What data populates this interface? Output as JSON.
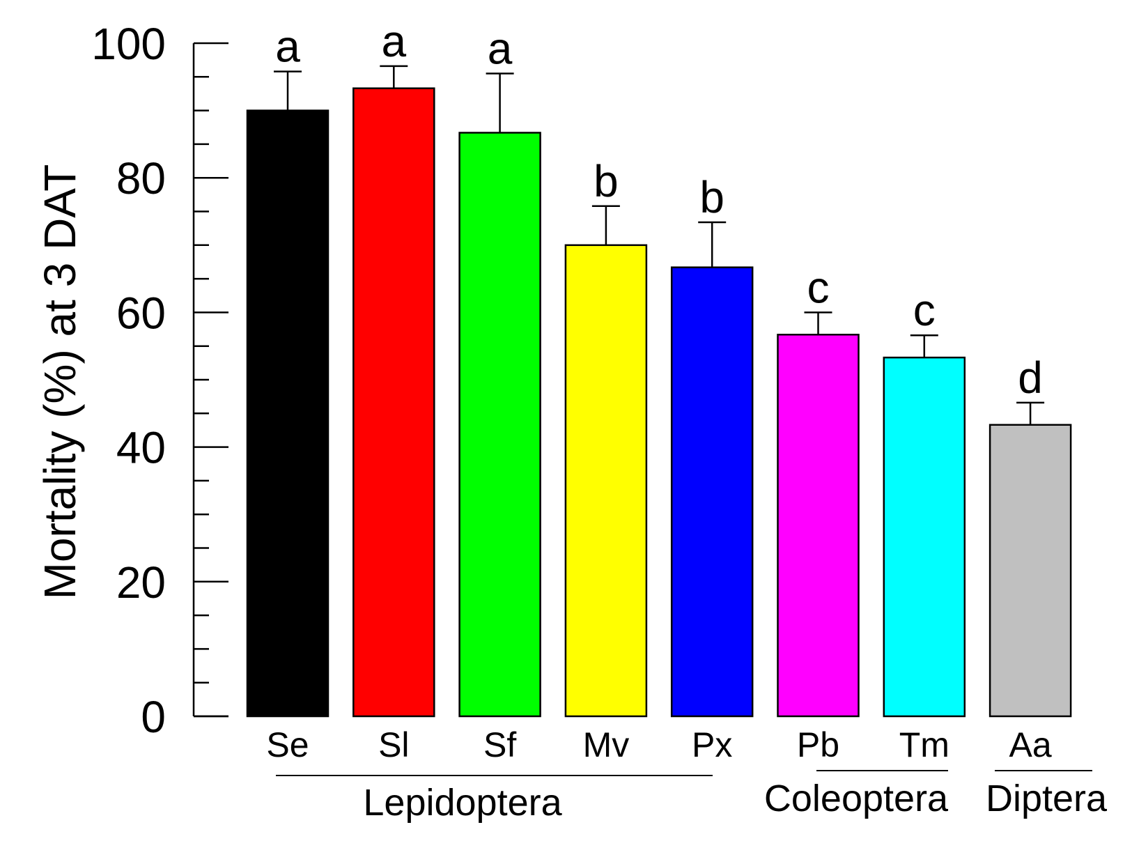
{
  "chart_data": {
    "type": "bar",
    "ylabel": "Mortality (%) at 3 DAT",
    "ylim": [
      0,
      100
    ],
    "yticks": [
      "0",
      "20",
      "40",
      "60",
      "80",
      "100"
    ],
    "categories": [
      "Se",
      "Sl",
      "Sf",
      "Mv",
      "Px",
      "Pb",
      "Tm",
      "Aa"
    ],
    "values": [
      90,
      93.3,
      86.7,
      70,
      66.7,
      56.7,
      53.3,
      43.3
    ],
    "errors": [
      5.8,
      3.3,
      8.8,
      5.8,
      6.7,
      3.3,
      3.3,
      3.3
    ],
    "letters": [
      "a",
      "a",
      "a",
      "b",
      "b",
      "c",
      "c",
      "d"
    ],
    "colors": [
      "#000000",
      "#ff0000",
      "#00ff00",
      "#ffff00",
      "#0000ff",
      "#ff00ff",
      "#00ffff",
      "#c0c0c0"
    ],
    "groups": [
      {
        "label": "Lepidoptera",
        "categories": [
          "Se",
          "Sl",
          "Sf",
          "Mv",
          "Px"
        ]
      },
      {
        "label": "Coleoptera",
        "categories": [
          "Pb",
          "Tm"
        ]
      },
      {
        "label": "Diptera",
        "categories": [
          "Aa"
        ]
      }
    ]
  }
}
